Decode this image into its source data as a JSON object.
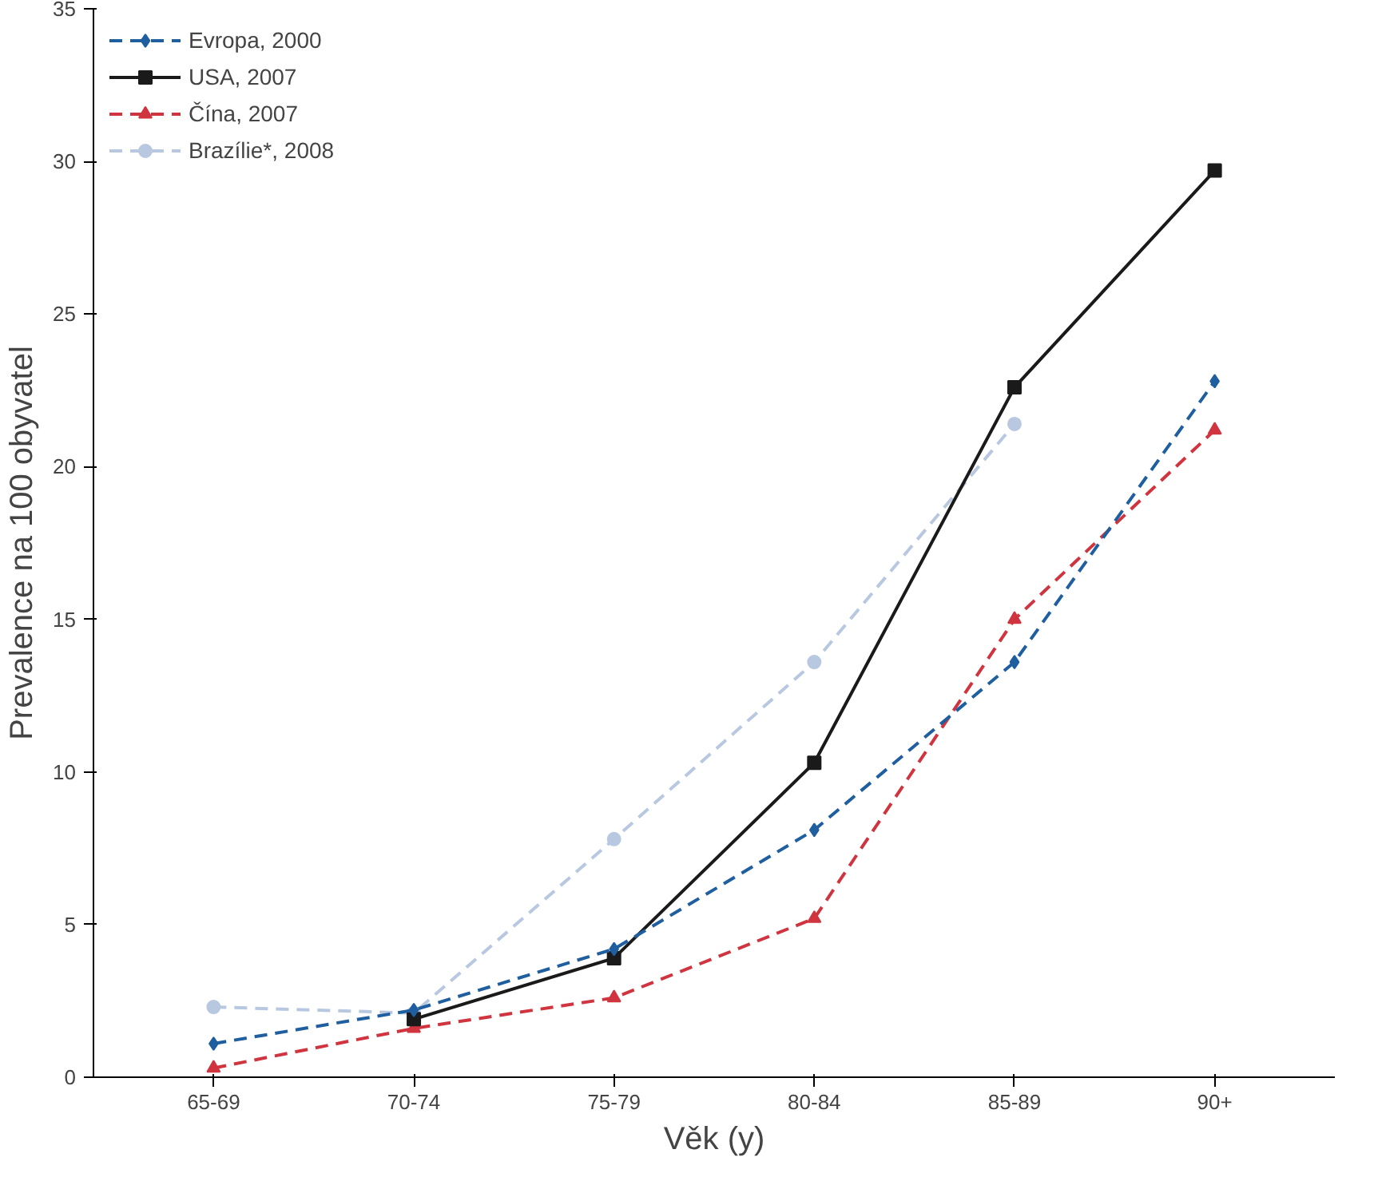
{
  "chart_data": {
    "type": "line",
    "xlabel": "Věk (y)",
    "ylabel": "Prevalence na 100 obyvatel",
    "categories": [
      "65-69",
      "70-74",
      "75-79",
      "80-84",
      "85-89",
      "90+"
    ],
    "ylim": [
      0,
      35
    ],
    "yticks": [
      0,
      5,
      10,
      15,
      20,
      25,
      30,
      35
    ],
    "grid": false,
    "legend": "top left",
    "series": [
      {
        "name": "Evropa, 2000",
        "color": "#1f5fa0",
        "marker": "diamond",
        "line_style": "dashed",
        "values": [
          1.1,
          2.2,
          4.2,
          8.1,
          13.6,
          22.8
        ]
      },
      {
        "name": "USA, 2007",
        "color": "#1a1a1a",
        "marker": "square",
        "line_style": "solid",
        "values": [
          null,
          1.9,
          3.9,
          10.3,
          22.6,
          29.7
        ]
      },
      {
        "name": "Čína, 2007",
        "color": "#d0343f",
        "marker": "triangle",
        "line_style": "dashed",
        "values": [
          0.3,
          1.6,
          2.6,
          5.2,
          15.0,
          21.2
        ]
      },
      {
        "name": "Brazílie*, 2008",
        "color": "#b8c8e0",
        "marker": "circle",
        "line_style": "dashed",
        "values": [
          2.3,
          2.1,
          7.8,
          13.6,
          21.4,
          null
        ]
      }
    ]
  }
}
